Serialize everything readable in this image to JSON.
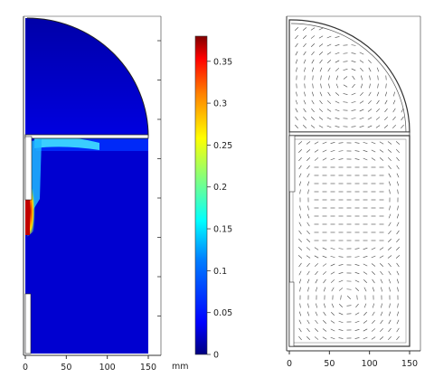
{
  "left_plot": {
    "x_ticks": [
      "0",
      "50",
      "100",
      "150"
    ],
    "x_unit": "mm"
  },
  "colorbar": {
    "ticks": [
      "0.35",
      "0.3",
      "0.25",
      "0.2",
      "0.15",
      "0.1",
      "0.05",
      "0"
    ],
    "colors": [
      "#00007f",
      "#0000ff",
      "#0080ff",
      "#00ffff",
      "#80ff80",
      "#ffff00",
      "#ff8000",
      "#ff0000",
      "#7f0000"
    ]
  },
  "right_plot": {
    "x_ticks": [
      "0",
      "50",
      "100",
      "150"
    ]
  }
}
